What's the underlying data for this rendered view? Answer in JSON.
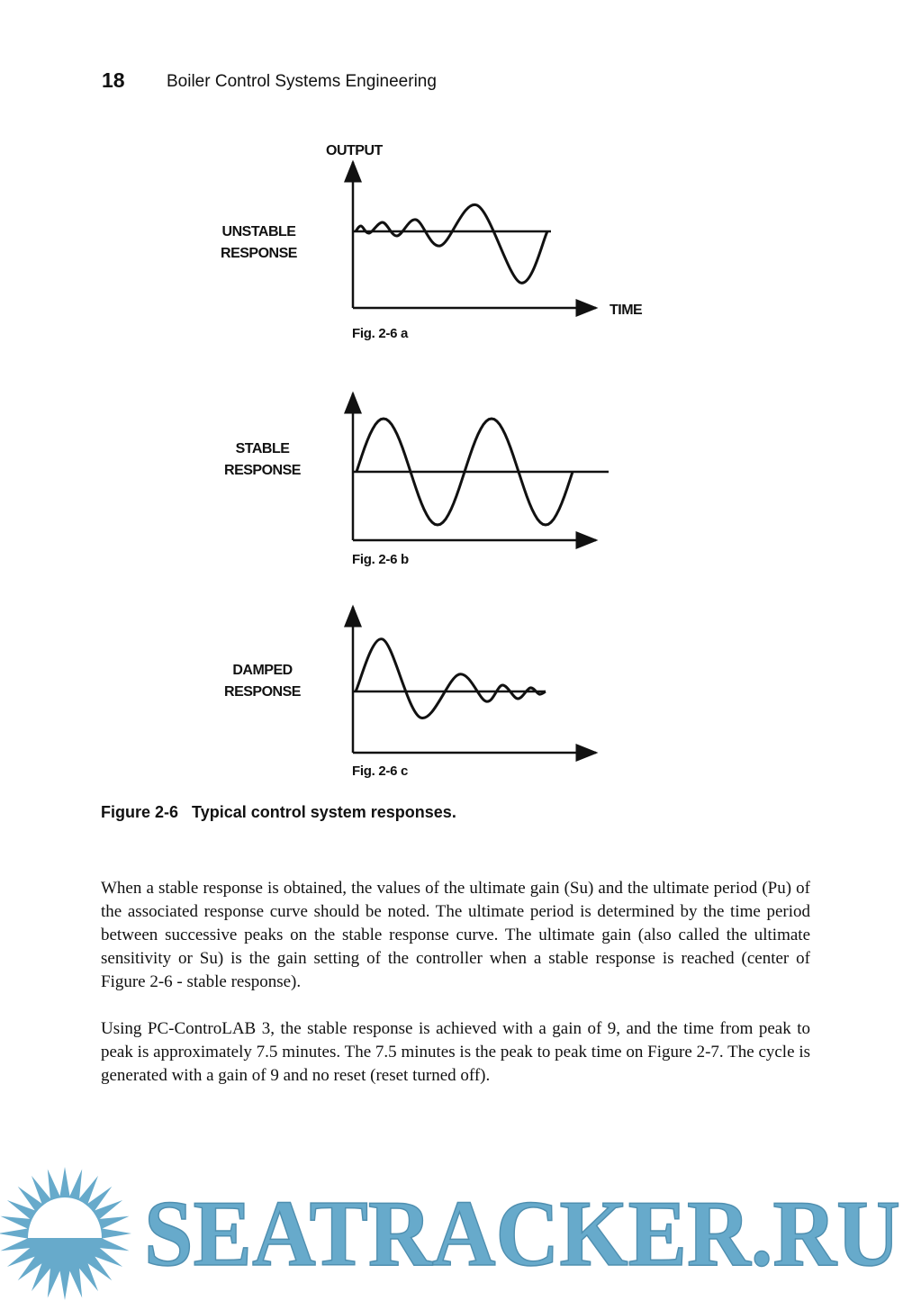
{
  "header": {
    "page_number": "18",
    "book_title": "Boiler Control Systems Engineering"
  },
  "figures": [
    {
      "label_line1": "UNSTABLE",
      "label_line2": "RESPONSE",
      "caption": "Fig. 2-6 a",
      "y_axis_label": "OUTPUT",
      "x_axis_label": "TIME"
    },
    {
      "label_line1": "STABLE",
      "label_line2": "RESPONSE",
      "caption": "Fig. 2-6 b"
    },
    {
      "label_line1": "DAMPED",
      "label_line2": "RESPONSE",
      "caption": "Fig. 2-6 c"
    }
  ],
  "figure_caption": {
    "number": "Figure 2-6",
    "title": "Typical control system responses."
  },
  "paragraphs": [
    "When a stable response is obtained, the values of the ultimate gain (Su) and the ultimate period (Pu) of the associated response curve should be noted. The ultimate period is determined by the time period between successive peaks on the stable response curve. The ultimate gain (also called the ultimate sensitivity or Su) is the gain setting of the controller when a stable response is reached (center of Figure 2-6 - stable response).",
    "Using PC-ControLAB 3, the stable response is achieved with a gain of 9, and the time from peak to peak is approximately 7.5 minutes. The 7.5 minutes is the peak to peak time on Figure 2-7. The cycle is generated with a gain of 9 and no reset (reset turned off)."
  ],
  "watermark": {
    "text": "SEATRACKER.RU",
    "color": "#67aacb"
  }
}
